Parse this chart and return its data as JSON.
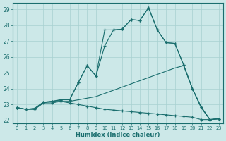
{
  "xlabel": "Humidex (Indice chaleur)",
  "bg_color": "#cce8e8",
  "line_color": "#1a6e6e",
  "grid_color": "#a8d0d0",
  "xlim": [
    -0.5,
    23.5
  ],
  "ylim": [
    21.8,
    29.4
  ],
  "xticks": [
    0,
    1,
    2,
    3,
    4,
    5,
    6,
    7,
    8,
    9,
    10,
    11,
    12,
    13,
    14,
    15,
    16,
    17,
    18,
    19,
    20,
    21,
    22,
    23
  ],
  "yticks": [
    22,
    23,
    24,
    25,
    26,
    27,
    28,
    29
  ],
  "line_flat_x": [
    0,
    1,
    2,
    3,
    4,
    5,
    6,
    7,
    8,
    9,
    10,
    11,
    12,
    13,
    14,
    15,
    16,
    17,
    18,
    19,
    20,
    21,
    22,
    23
  ],
  "line_flat_y": [
    22.8,
    22.7,
    22.7,
    23.1,
    23.1,
    23.2,
    23.1,
    23.0,
    22.9,
    22.8,
    22.7,
    22.65,
    22.6,
    22.55,
    22.5,
    22.45,
    22.4,
    22.35,
    22.3,
    22.25,
    22.2,
    22.05,
    22.05,
    22.1
  ],
  "line_lower_x": [
    0,
    1,
    2,
    3,
    4,
    5,
    6,
    7,
    8,
    9,
    10,
    11,
    12,
    13,
    14,
    15,
    16,
    17,
    18,
    19,
    20,
    21,
    22,
    23
  ],
  "line_lower_y": [
    22.8,
    22.7,
    22.7,
    23.1,
    23.2,
    23.2,
    23.2,
    23.3,
    23.4,
    23.5,
    23.7,
    23.9,
    24.1,
    24.3,
    24.5,
    24.7,
    24.9,
    25.1,
    25.3,
    25.45,
    24.0,
    22.8,
    22.05,
    22.1
  ],
  "line_upper_x": [
    0,
    1,
    2,
    3,
    4,
    5,
    6,
    7,
    8,
    9,
    10,
    11,
    12,
    13,
    14,
    15,
    16,
    17,
    18,
    19,
    20,
    21,
    22,
    23
  ],
  "line_upper_y": [
    22.8,
    22.7,
    22.75,
    23.15,
    23.2,
    23.3,
    23.3,
    24.4,
    25.45,
    24.8,
    27.7,
    27.7,
    27.75,
    28.35,
    28.3,
    29.1,
    27.7,
    26.9,
    26.85,
    25.5,
    24.0,
    22.85,
    22.05,
    22.1
  ],
  "line_peak_x": [
    0,
    1,
    2,
    3,
    4,
    5,
    6,
    7,
    8,
    9,
    10,
    11,
    12,
    13,
    14,
    15,
    16,
    17,
    18,
    19,
    20,
    21,
    22,
    23
  ],
  "line_peak_y": [
    22.8,
    22.7,
    22.75,
    23.15,
    23.2,
    23.3,
    23.3,
    24.4,
    25.45,
    24.8,
    26.7,
    27.7,
    27.75,
    28.35,
    28.3,
    29.1,
    27.7,
    26.9,
    26.85,
    25.5,
    24.0,
    22.85,
    22.05,
    22.1
  ]
}
